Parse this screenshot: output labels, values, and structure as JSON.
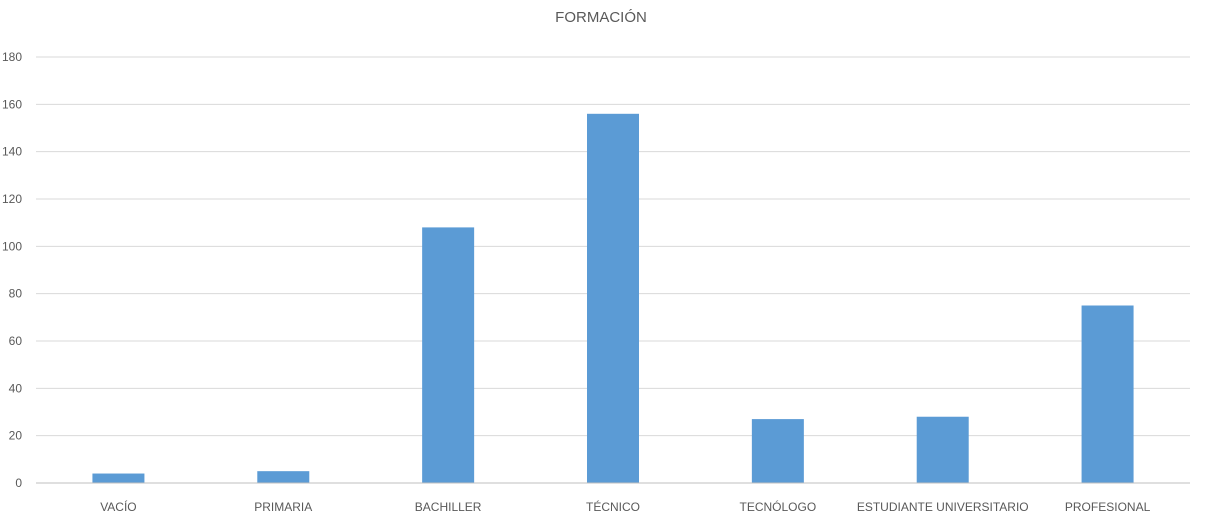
{
  "chart_data": {
    "type": "bar",
    "title": "FORMACIÓN",
    "categories": [
      "VACÍO",
      "PRIMARIA",
      "BACHILLER",
      "TÉCNICO",
      "TECNÓLOGO",
      "ESTUDIANTE UNIVERSITARIO",
      "PROFESIONAL"
    ],
    "values": [
      4,
      5,
      108,
      156,
      27,
      28,
      75
    ],
    "xlabel": "",
    "ylabel": "",
    "ylim": [
      0,
      180
    ],
    "yticks": [
      "0",
      "20",
      "40",
      "60",
      "80",
      "100",
      "120",
      "140",
      "160",
      "180"
    ],
    "grid": true,
    "legend": "none",
    "bar_color": "#5b9bd5"
  }
}
